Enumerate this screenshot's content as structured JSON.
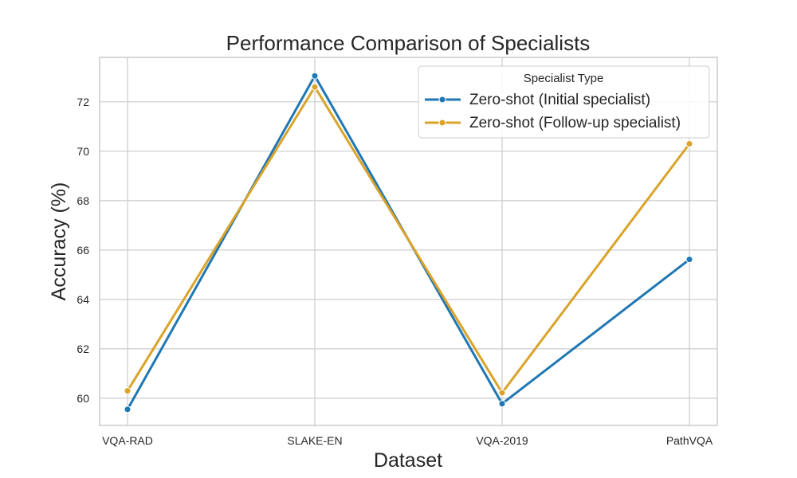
{
  "chart_data": {
    "type": "line",
    "title": "Performance Comparison of Specialists",
    "xlabel": "Dataset",
    "ylabel": "Accuracy (%)",
    "categories": [
      "VQA-RAD",
      "SLAKE-EN",
      "VQA-2019",
      "PathVQA"
    ],
    "ylim": [
      58.9,
      73.8
    ],
    "yticks": [
      60,
      62,
      64,
      66,
      68,
      70,
      72
    ],
    "grid": true,
    "legend": {
      "title": "Specialist Type",
      "placement": "top-right"
    },
    "series": [
      {
        "name": "Zero-shot (Initial specialist)",
        "color": "#1f77b4",
        "values": [
          59.55,
          73.05,
          59.78,
          65.62
        ]
      },
      {
        "name": "Zero-shot (Follow-up specialist)",
        "color": "#daa32a",
        "values": [
          60.3,
          72.6,
          60.22,
          70.3
        ]
      }
    ]
  }
}
